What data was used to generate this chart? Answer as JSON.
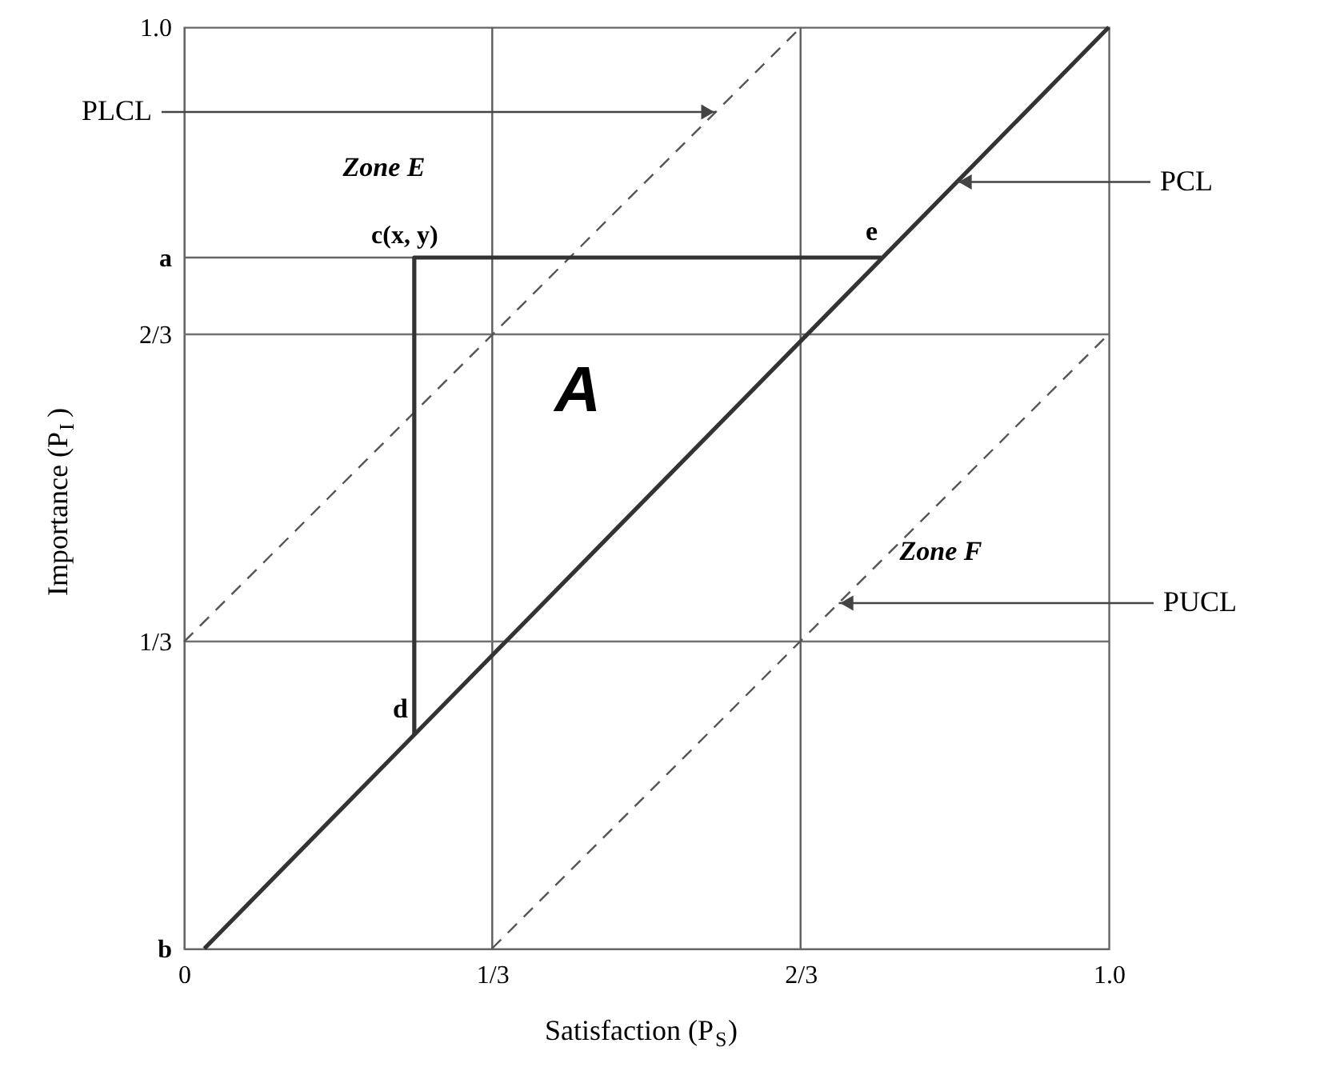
{
  "chart_data": {
    "type": "line",
    "xlabel": "Satisfaction (P$_{S}$)",
    "ylabel": "Importance (P$_{I}$)",
    "xlim": [
      0,
      1
    ],
    "ylim": [
      0,
      1
    ],
    "xticks": [
      0,
      {
        "value": 0.3333,
        "label": "1/3"
      },
      {
        "value": 0.6667,
        "label": "2/3"
      },
      {
        "value": 1,
        "label": "1.0"
      }
    ],
    "yticks": [
      {
        "value": 0,
        "label": "b"
      },
      {
        "value": 0.3333,
        "label": "1/3"
      },
      {
        "value": 0.6667,
        "label": "2/3"
      },
      {
        "value": 0.75,
        "label": "a"
      },
      {
        "value": 1,
        "label": "1.0"
      }
    ],
    "grid": false,
    "ref_lines": [
      {
        "axis": "x",
        "value": 0.3333,
        "color": "#5c5c5c"
      },
      {
        "axis": "x",
        "value": 0.6667,
        "color": "#5c5c5c"
      },
      {
        "axis": "y",
        "value": 0.3333,
        "color": "#717171"
      },
      {
        "axis": "y",
        "value": 0.6667,
        "color": "#717171"
      }
    ],
    "series": [
      {
        "color": "#333333",
        "x": [
          0.022,
          1
        ],
        "values": [
          0,
          1
        ],
        "line_style": "solid"
      },
      {
        "color": "#555555",
        "x": [
          0,
          0.667
        ],
        "values": [
          0.333,
          1
        ],
        "line_style": "dashed"
      },
      {
        "color": "#555555",
        "x": [
          0.333,
          1
        ],
        "values": [
          0,
          0.667
        ],
        "line_style": "dashed"
      },
      {
        "color": "#666666",
        "x": [
          0,
          0.249
        ],
        "values": [
          0.75,
          0.75
        ],
        "line_style": "solid"
      },
      {
        "color": "#333333",
        "x": [
          0.754,
          0.249,
          0.249
        ],
        "values": [
          0.75,
          0.75,
          0.232
        ],
        "line_style": "solid"
      }
    ],
    "annotations": [
      {
        "text": "PLCL",
        "x": 0.575,
        "y": 0.908
      },
      {
        "text": "PCL",
        "x": 0.836,
        "y": 0.832
      },
      {
        "text": "PUCL",
        "x": 0.708,
        "y": 0.375
      },
      "Zone E",
      "Zone F",
      "A",
      {
        "text": "c(x, y)",
        "x": 0.249,
        "y": 0.75
      },
      {
        "text": "e",
        "x": 0.754,
        "y": 0.75
      },
      {
        "text": "d",
        "x": 0.249,
        "y": 0.232
      }
    ]
  }
}
